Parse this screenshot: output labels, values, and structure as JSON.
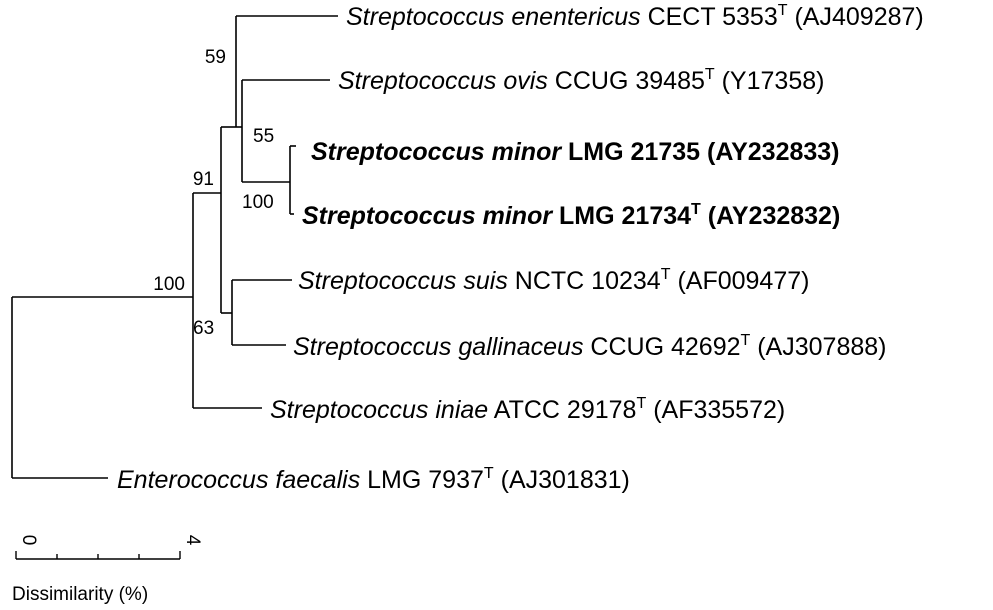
{
  "taxa": [
    {
      "genus": "Streptococcus",
      "species": "enentericus",
      "strain": "CECT 5353",
      "type": "T",
      "accession": "(AJ409287)",
      "bold": false
    },
    {
      "genus": "Streptococcus",
      "species": "ovis",
      "strain": "CCUG 39485",
      "type": "T",
      "accession": "(Y17358)",
      "bold": false
    },
    {
      "genus": "Streptococcus",
      "species": "minor",
      "strain": "LMG 21735",
      "type": "",
      "accession": "(AY232833)",
      "bold": true
    },
    {
      "genus": "Streptococcus",
      "species": "minor",
      "strain": "LMG 21734",
      "type": "T",
      "accession": "(AY232832)",
      "bold": true
    },
    {
      "genus": "Streptococcus",
      "species": "suis",
      "strain": "NCTC 10234",
      "type": "T",
      "accession": "(AF009477)",
      "bold": false
    },
    {
      "genus": "Streptococcus",
      "species": "gallinaceus",
      "strain": "CCUG 42692",
      "type": "T",
      "accession": "(AJ307888)",
      "bold": false
    },
    {
      "genus": "Streptococcus",
      "species": "iniae",
      "strain": "ATCC 29178",
      "type": "T",
      "accession": "(AF335572)",
      "bold": false
    },
    {
      "genus": "Enterococcus",
      "species": "faecalis",
      "strain": "LMG 7937",
      "type": "T",
      "accession": "(AJ301831)",
      "bold": false
    }
  ],
  "bootstrap": {
    "b59": "59",
    "b55": "55",
    "b100_minor": "100",
    "b91": "91",
    "b100_root": "100",
    "b63": "63"
  },
  "scale": {
    "min_label": "0",
    "max_label": "4",
    "axis_label": "Dissimilarity (%)",
    "range": [
      0,
      4
    ]
  }
}
